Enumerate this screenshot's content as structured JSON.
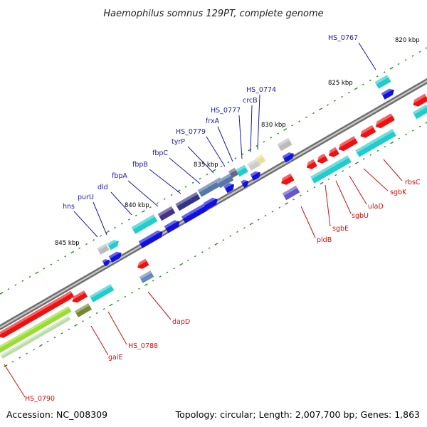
{
  "title": "Haemophilus somnus 129PT, complete genome",
  "footer": {
    "accession": "Accession: NC_008309",
    "summary": "Topology: circular; Length: 2,007,700 bp; Genes: 1,863"
  },
  "colors": {
    "backbone": "#888888",
    "tick": "#2a8a2a",
    "forward_label": "#1a1aa0",
    "reverse_label": "#cc1111"
  },
  "ticks": [
    "820 kbp",
    "825 kbp",
    "830 kbp",
    "835 kbp",
    "840 kbp",
    "845 kbp"
  ],
  "labels": {
    "forward": [
      "HS_0767",
      "HS_0774",
      "crcB",
      "HS_0777",
      "frxA",
      "HS_0779",
      "tyrP",
      "fbpC",
      "fbpB",
      "fbpA",
      "dld",
      "purU",
      "hns"
    ],
    "reverse": [
      "rbsC",
      "sgbK",
      "ulaD",
      "sgbU",
      "sgbE",
      "pldB",
      "dapD",
      "HS_0788",
      "galE",
      "HS_0790"
    ]
  }
}
